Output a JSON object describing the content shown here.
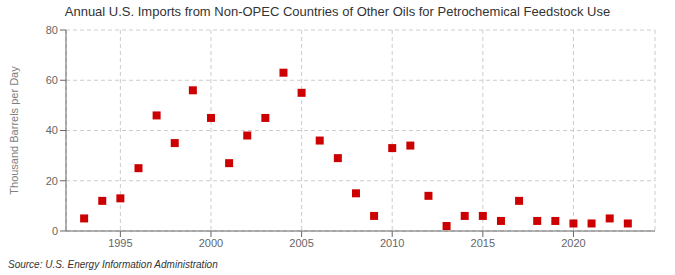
{
  "chart_data": {
    "type": "scatter",
    "title": "Annual U.S. Imports from Non-OPEC Countries of Other Oils for Petrochemical Feedstock Use",
    "ylabel": "Thousand Barrels per Day",
    "annotations": [
      "Source: U.S. Energy Information Administration"
    ],
    "x": [
      1993,
      1994,
      1995,
      1996,
      1997,
      1998,
      1999,
      2000,
      2001,
      2002,
      2003,
      2004,
      2005,
      2006,
      2007,
      2008,
      2009,
      2010,
      2011,
      2012,
      2013,
      2014,
      2015,
      2016,
      2017,
      2018,
      2019,
      2020,
      2021,
      2022,
      2023
    ],
    "values": [
      5,
      12,
      13,
      25,
      46,
      35,
      56,
      45,
      27,
      38,
      45,
      63,
      55,
      36,
      29,
      15,
      6,
      33,
      34,
      14,
      2,
      6,
      6,
      4,
      12,
      4,
      4,
      3,
      3,
      5,
      3
    ],
    "color": "#cc0000",
    "marker": "square",
    "xlim": [
      1992,
      2024.5
    ],
    "xticks": [
      1995,
      2000,
      2005,
      2010,
      2015,
      2020
    ],
    "ylim": [
      0,
      80
    ],
    "yticks": [
      0,
      20,
      40,
      60,
      80
    ],
    "grid": true
  }
}
